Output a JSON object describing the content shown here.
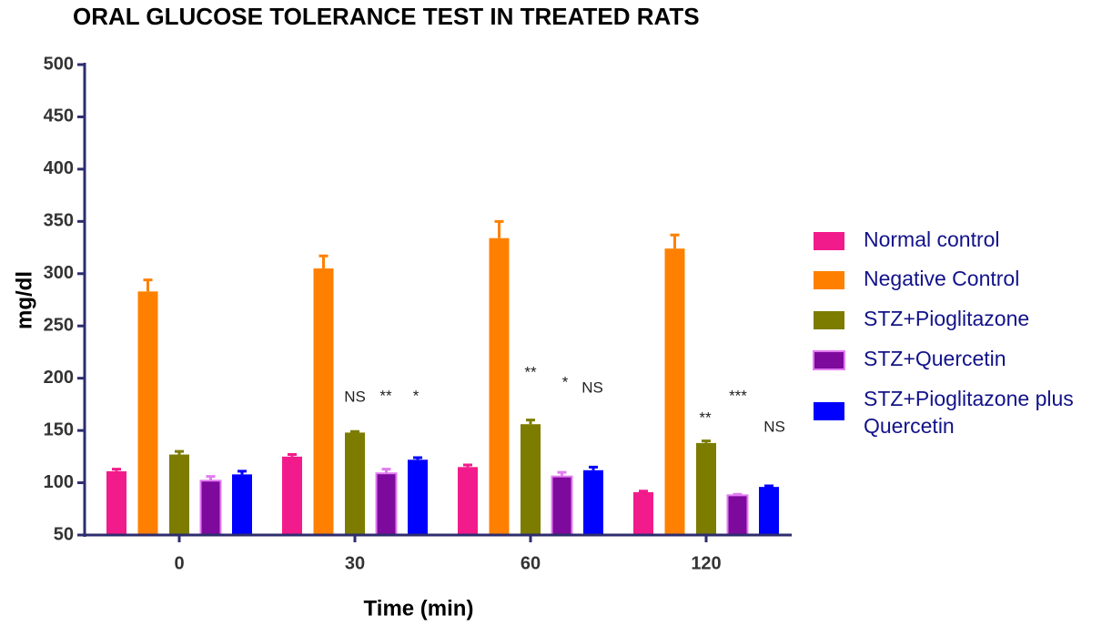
{
  "chart_data": {
    "type": "bar",
    "title": "ORAL GLUCOSE TOLERANCE TEST IN TREATED RATS",
    "x_label": "Time (min)",
    "y_label": "mg/dl",
    "categories": [
      "0",
      "30",
      "60",
      "120"
    ],
    "ylim": [
      50,
      500
    ],
    "yticks": [
      50,
      100,
      150,
      200,
      250,
      300,
      350,
      400,
      450,
      500
    ],
    "series": [
      {
        "name": "Normal control",
        "color": "#f21b8b",
        "values": [
          111,
          125,
          115,
          91
        ],
        "errors": [
          2,
          2,
          2,
          1
        ]
      },
      {
        "name": "Negative Control",
        "color": "#ff8000",
        "values": [
          283,
          305,
          334,
          324
        ],
        "errors": [
          11,
          12,
          16,
          13
        ]
      },
      {
        "name": "STZ+Pioglitazone",
        "color": "#7c7c00",
        "values": [
          127,
          148,
          156,
          138
        ],
        "errors": [
          3,
          1,
          4,
          2
        ]
      },
      {
        "name": "STZ+Quercetin",
        "color": "#7d0a9c",
        "edgecolor": "#e27cf2",
        "values": [
          102,
          109,
          106,
          88
        ],
        "errors": [
          4,
          4,
          4,
          1
        ]
      },
      {
        "name": "STZ+Pioglitazone plus Quercetin",
        "color": "#0000ff",
        "values": [
          108,
          122,
          112,
          96
        ],
        "errors": [
          3,
          2,
          3,
          1
        ]
      }
    ],
    "annotations": [
      "NS",
      "**",
      "*",
      "**",
      "*",
      "NS",
      "**",
      "***",
      "NS"
    ]
  }
}
